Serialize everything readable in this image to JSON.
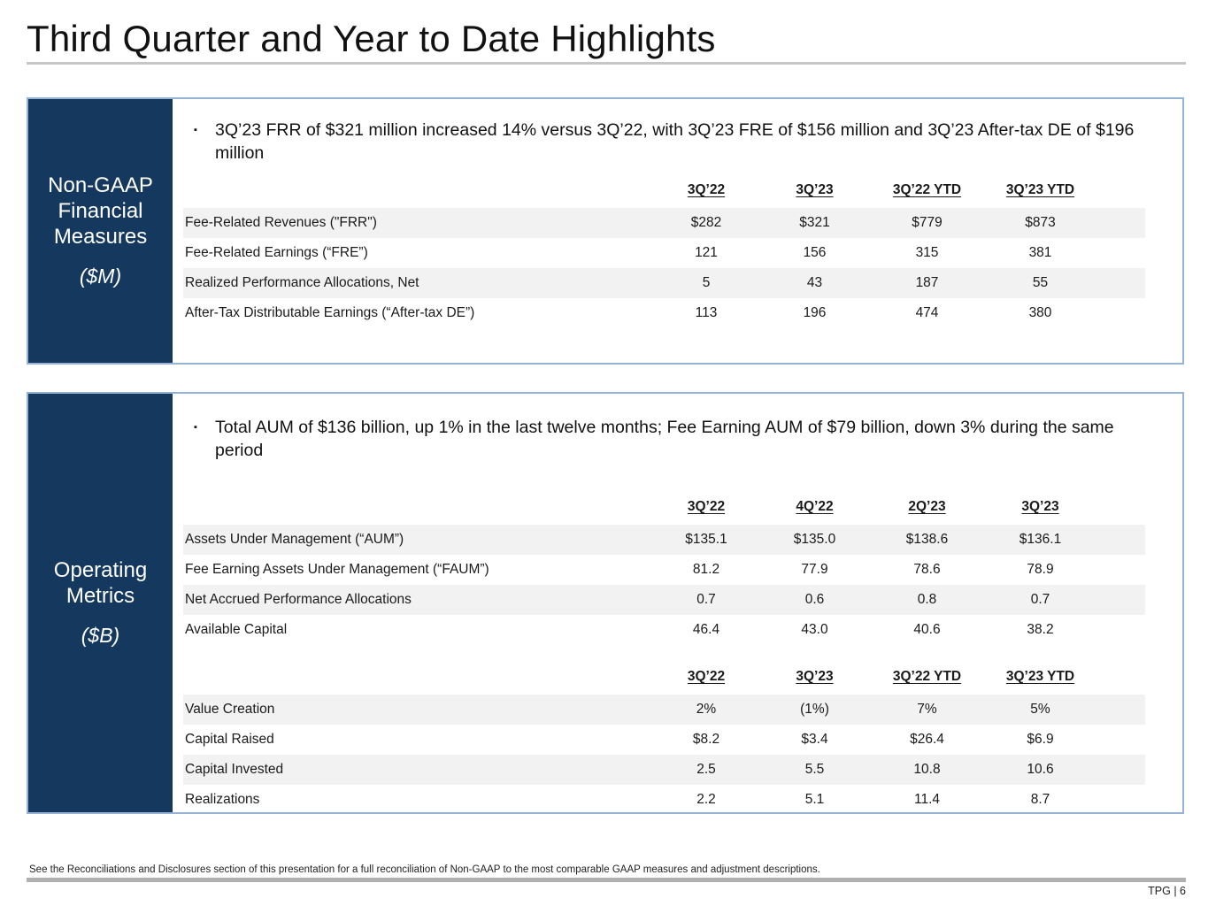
{
  "title": "Third Quarter and Year to Date Highlights",
  "colors": {
    "navy": "#15395E",
    "panel_border": "#95B3D7",
    "row_shade": "#F2F2F2",
    "title_rule": "#C6C6C6",
    "footer_rule": "#B0B0B0"
  },
  "sections": [
    {
      "sidebar": {
        "title": "Non-GAAP Financial Measures",
        "unit": "($M)"
      },
      "bullet": "3Q’23 FRR of $321 million increased 14% versus 3Q’22, with 3Q’23 FRE of $156 million and 3Q’23 After-tax DE of $196 million",
      "tables": [
        {
          "headers": [
            "3Q’22",
            "3Q’23",
            "3Q’22 YTD",
            "3Q’23 YTD"
          ],
          "rows": [
            {
              "label": "Fee-Related Revenues (\"FRR\")",
              "values": [
                "$282",
                "$321",
                "$779",
                "$873"
              ]
            },
            {
              "label": "Fee-Related Earnings (“FRE”)",
              "values": [
                "121",
                "156",
                "315",
                "381"
              ]
            },
            {
              "label": "Realized Performance Allocations, Net",
              "values": [
                "5",
                "43",
                "187",
                "55"
              ]
            },
            {
              "label": "After-Tax Distributable Earnings (“After-tax DE”)",
              "values": [
                "113",
                "196",
                "474",
                "380"
              ]
            }
          ]
        }
      ]
    },
    {
      "sidebar": {
        "title": "Operating Metrics",
        "unit": "($B)"
      },
      "bullet": "Total AUM of $136 billion, up 1% in the last twelve months; Fee Earning AUM of $79 billion, down 3% during the same period",
      "tables": [
        {
          "headers": [
            "3Q’22",
            "4Q’22",
            "2Q’23",
            "3Q’23"
          ],
          "rows": [
            {
              "label": "Assets Under Management (“AUM”)",
              "values": [
                "$135.1",
                "$135.0",
                "$138.6",
                "$136.1"
              ]
            },
            {
              "label": "Fee Earning Assets Under Management (“FAUM”)",
              "values": [
                "81.2",
                "77.9",
                "78.6",
                "78.9"
              ]
            },
            {
              "label": "Net Accrued Performance Allocations",
              "values": [
                "0.7",
                "0.6",
                "0.8",
                "0.7"
              ]
            },
            {
              "label": "Available Capital",
              "values": [
                "46.4",
                "43.0",
                "40.6",
                "38.2"
              ]
            }
          ]
        },
        {
          "headers": [
            "3Q’22",
            "3Q’23",
            "3Q’22 YTD",
            "3Q’23 YTD"
          ],
          "rows": [
            {
              "label": "Value Creation",
              "values": [
                "2%",
                "(1%)",
                "7%",
                "5%"
              ]
            },
            {
              "label": "Capital Raised",
              "values": [
                "$8.2",
                "$3.4",
                "$26.4",
                "$6.9"
              ]
            },
            {
              "label": "Capital Invested",
              "values": [
                "2.5",
                "5.5",
                "10.8",
                "10.6"
              ]
            },
            {
              "label": "Realizations",
              "values": [
                "2.2",
                "5.1",
                "11.4",
                "8.7"
              ]
            }
          ]
        }
      ]
    }
  ],
  "footer": {
    "disclaimer": "See the Reconciliations and Disclosures section of this presentation for a full reconciliation of Non-GAAP to the most comparable GAAP measures and adjustment descriptions.",
    "page": "TPG | 6"
  }
}
